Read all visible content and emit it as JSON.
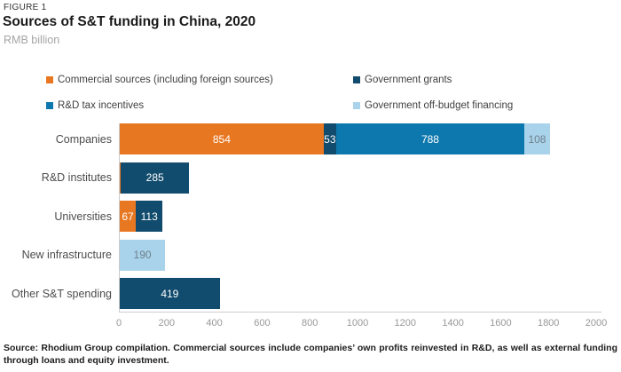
{
  "header": {
    "eyebrow": "FIGURE 1",
    "title": "Sources of S&T funding in China, 2020",
    "subtitle": "RMB billion"
  },
  "legend": [
    {
      "key": "commercial",
      "label": "Commercial sources (including foreign sources)"
    },
    {
      "key": "grants",
      "label": "Government grants"
    },
    {
      "key": "tax",
      "label": "R&D tax incentives"
    },
    {
      "key": "offbudget",
      "label": "Government off-budget financing"
    }
  ],
  "colors": {
    "commercial": "#e87722",
    "grants": "#114b6d",
    "tax": "#0d78ad",
    "offbudget": "#a9d3ea",
    "axis_line": "#cccccc",
    "tick_text": "#979797",
    "category_text": "#4c4c4c",
    "label_on_dark": "#ffffff",
    "label_on_light": "#6e7f8c"
  },
  "chart_data": {
    "type": "bar",
    "orientation": "horizontal-stacked",
    "title": "Sources of S&T funding in China, 2020",
    "xlabel": "RMB billion",
    "ylabel": "",
    "xlim": [
      0,
      2000
    ],
    "x_ticks": [
      0,
      200,
      400,
      600,
      800,
      1000,
      1200,
      1400,
      1600,
      1800,
      2000
    ],
    "grid": false,
    "legend_position": "top",
    "categories": [
      "Companies",
      "R&D institutes",
      "Universities",
      "New infrastructure",
      "Other S&T spending"
    ],
    "series": [
      {
        "name": "Commercial sources (including foreign sources)",
        "key": "commercial",
        "values": [
          854,
          5,
          67,
          0,
          0
        ]
      },
      {
        "name": "Government grants",
        "key": "grants",
        "values": [
          53,
          285,
          113,
          0,
          419
        ]
      },
      {
        "name": "R&D tax incentives",
        "key": "tax",
        "values": [
          788,
          0,
          0,
          0,
          0
        ]
      },
      {
        "name": "Government off-budget financing",
        "key": "offbudget",
        "values": [
          108,
          0,
          0,
          190,
          0
        ]
      }
    ],
    "label_min_value": 20
  },
  "footer": {
    "text": "Source: Rhodium Group compilation. Commercial sources include companies’ own profits reinvested in R&D, as well as external funding through loans and equity investment."
  }
}
